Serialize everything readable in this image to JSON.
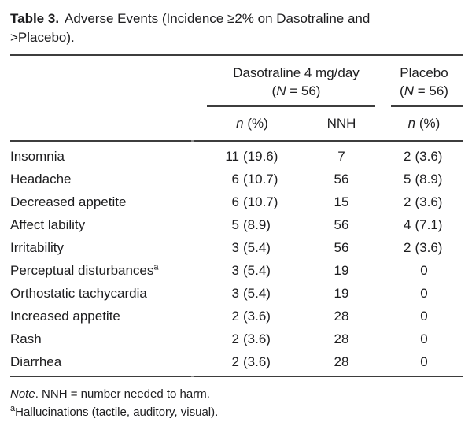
{
  "title": {
    "label": "Table 3.",
    "text": "Adverse Events (Incidence ≥2% on Dasotraline and >Placebo)."
  },
  "header": {
    "group_dasotraline": {
      "name": "Dasotraline 4 mg/day",
      "sub_pre": "(",
      "sub_italic": "N",
      "sub_post": " = 56)"
    },
    "group_placebo": {
      "name": "Placebo",
      "sub_pre": "(",
      "sub_italic": "N",
      "sub_post": " = 56)"
    },
    "col_n_pct": {
      "italic": "n",
      "rest": " (%)"
    },
    "col_nnh": "NNH"
  },
  "rows": [
    {
      "label": "Insomnia",
      "sup": "",
      "das_n": "11",
      "das_pct": "(19.6)",
      "nnh": "7",
      "pbo_n": "2",
      "pbo_pct": "(3.6)"
    },
    {
      "label": "Headache",
      "sup": "",
      "das_n": "6",
      "das_pct": "(10.7)",
      "nnh": "56",
      "pbo_n": "5",
      "pbo_pct": "(8.9)"
    },
    {
      "label": "Decreased appetite",
      "sup": "",
      "das_n": "6",
      "das_pct": "(10.7)",
      "nnh": "15",
      "pbo_n": "2",
      "pbo_pct": "(3.6)"
    },
    {
      "label": "Affect lability",
      "sup": "",
      "das_n": "5",
      "das_pct": "(8.9)",
      "nnh": "56",
      "pbo_n": "4",
      "pbo_pct": "(7.1)"
    },
    {
      "label": "Irritability",
      "sup": "",
      "das_n": "3",
      "das_pct": "(5.4)",
      "nnh": "56",
      "pbo_n": "2",
      "pbo_pct": "(3.6)"
    },
    {
      "label": "Perceptual disturbances",
      "sup": "a",
      "das_n": "3",
      "das_pct": "(5.4)",
      "nnh": "19",
      "pbo_n": "0",
      "pbo_pct": ""
    },
    {
      "label": "Orthostatic tachycardia",
      "sup": "",
      "das_n": "3",
      "das_pct": "(5.4)",
      "nnh": "19",
      "pbo_n": "0",
      "pbo_pct": ""
    },
    {
      "label": "Increased appetite",
      "sup": "",
      "das_n": "2",
      "das_pct": "(3.6)",
      "nnh": "28",
      "pbo_n": "0",
      "pbo_pct": ""
    },
    {
      "label": "Rash",
      "sup": "",
      "das_n": "2",
      "das_pct": "(3.6)",
      "nnh": "28",
      "pbo_n": "0",
      "pbo_pct": ""
    },
    {
      "label": "Diarrhea",
      "sup": "",
      "das_n": "2",
      "das_pct": "(3.6)",
      "nnh": "28",
      "pbo_n": "0",
      "pbo_pct": ""
    }
  ],
  "footnotes": {
    "note_italic": "Note",
    "note_rest": ". NNH = number needed to harm.",
    "fn_sup": "a",
    "fn_text": "Hallucinations (tactile, auditory, visual)."
  },
  "colors": {
    "text": "#1d1d1f",
    "rule": "#3d3d3d",
    "background": "#ffffff"
  }
}
